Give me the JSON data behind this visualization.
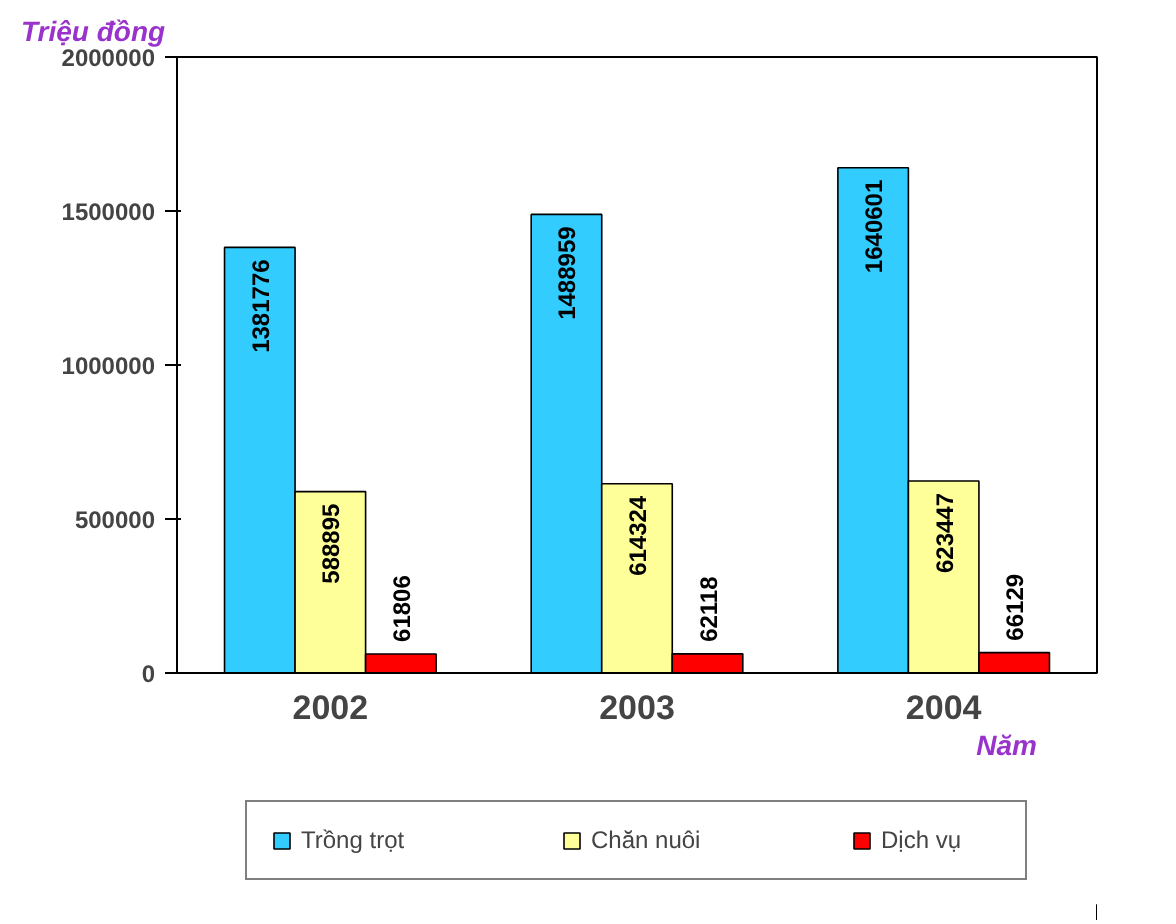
{
  "chart_data": {
    "type": "bar",
    "ylabel": "Triệu đồng",
    "xlabel": "Năm",
    "categories": [
      "2002",
      "2003",
      "2004"
    ],
    "series": [
      {
        "name": "Trồng trọt",
        "color": "#33ccff",
        "values": [
          1381776,
          1488959,
          1640601
        ]
      },
      {
        "name": "Chăn nuôi",
        "color": "#ffff99",
        "values": [
          588895,
          614324,
          623447
        ]
      },
      {
        "name": "Dịch vụ",
        "color": "#ff0000",
        "values": [
          61806,
          62118,
          66129
        ]
      }
    ],
    "ylim": [
      0,
      2000000
    ],
    "yticks": [
      0,
      500000,
      1000000,
      1500000,
      2000000
    ],
    "grid": false,
    "legend": "bottom",
    "data_labels": true
  }
}
